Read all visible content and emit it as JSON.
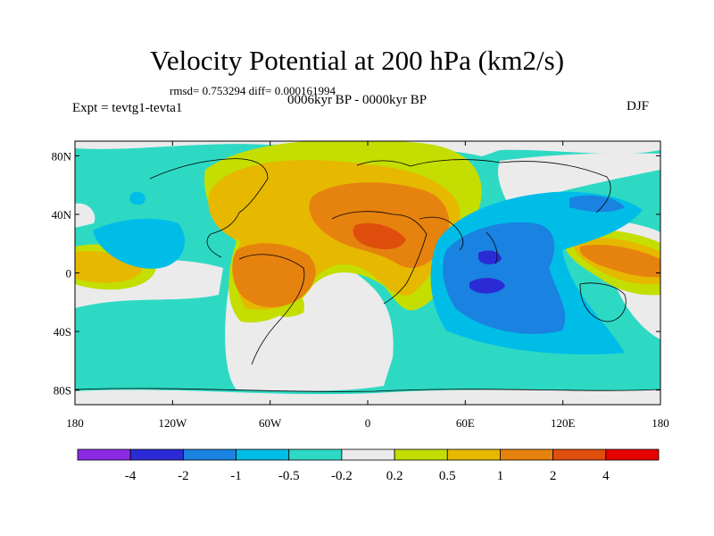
{
  "title": "Velocity Potential at 200 hPa (km2/s)",
  "stats": "rmsd= 0.753294 diff= 0.000161994",
  "subtitle": "0006kyr BP - 0000kyr BP",
  "experiment": "Expt = tevtg1-tevta1",
  "season": "DJF",
  "map": {
    "projection": "cylindrical equidistant",
    "lon_range": [
      -180,
      180
    ],
    "lat_range": [
      -90,
      90
    ],
    "lat_ticks": [
      {
        "value": 80,
        "label": "80N"
      },
      {
        "value": 40,
        "label": "40N"
      },
      {
        "value": 0,
        "label": "0"
      },
      {
        "value": -40,
        "label": "40S"
      },
      {
        "value": -80,
        "label": "80S"
      }
    ],
    "lon_ticks": [
      {
        "value": -180,
        "label": "180"
      },
      {
        "value": -120,
        "label": "120W"
      },
      {
        "value": -60,
        "label": "60W"
      },
      {
        "value": 0,
        "label": "0"
      },
      {
        "value": 60,
        "label": "60E"
      },
      {
        "value": 120,
        "label": "120E"
      },
      {
        "value": 180,
        "label": "180"
      }
    ]
  },
  "colorbar": {
    "colors": [
      "#8a2be2",
      "#2b2bd6",
      "#1a82e0",
      "#00bde8",
      "#2ed9c4",
      "#ebebeb",
      "#c3de00",
      "#e6b800",
      "#e6820e",
      "#e04e0e",
      "#e60000"
    ],
    "labels": [
      "-4",
      "-2",
      "-1",
      "-0.5",
      "-0.2",
      "0.2",
      "0.5",
      "1",
      "2",
      "4"
    ]
  },
  "chart_data": {
    "type": "heatmap",
    "title": "Velocity Potential at 200 hPa (km2/s)",
    "levels": [
      -4,
      -2,
      -1,
      -0.5,
      -0.2,
      0.2,
      0.5,
      1,
      2,
      4
    ],
    "features": [
      {
        "label": "positive maximum",
        "lon": 10,
        "lat": 15,
        "value": 3
      },
      {
        "label": "positive center",
        "lon": -60,
        "lat": -5,
        "value": 2
      },
      {
        "label": "positive center",
        "lon": 150,
        "lat": 5,
        "value": 2
      },
      {
        "label": "negative minimum",
        "lon": 75,
        "lat": -10,
        "value": -2.5
      },
      {
        "label": "negative center",
        "lon": 77,
        "lat": 5,
        "value": -2.2
      },
      {
        "label": "negative center",
        "lon": -150,
        "lat": 10,
        "value": -1
      },
      {
        "label": "negative center",
        "lon": 125,
        "lat": 30,
        "value": -1
      }
    ]
  }
}
